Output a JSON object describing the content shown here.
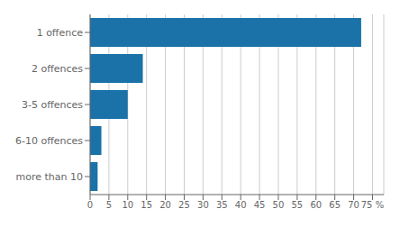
{
  "chart_data": {
    "type": "bar",
    "orientation": "horizontal",
    "categories": [
      "1 offence",
      "2 offences",
      "3-5 offences",
      "6-10 offences",
      "more than 10"
    ],
    "values": [
      72,
      14,
      10,
      3,
      2
    ],
    "color": "#1a72a8",
    "xlim": [
      0,
      78
    ],
    "xticks": [
      0,
      5,
      10,
      15,
      20,
      25,
      30,
      35,
      40,
      45,
      50,
      55,
      60,
      65,
      70,
      {
        "value": 75,
        "label": "75 %"
      }
    ],
    "grid": true
  }
}
